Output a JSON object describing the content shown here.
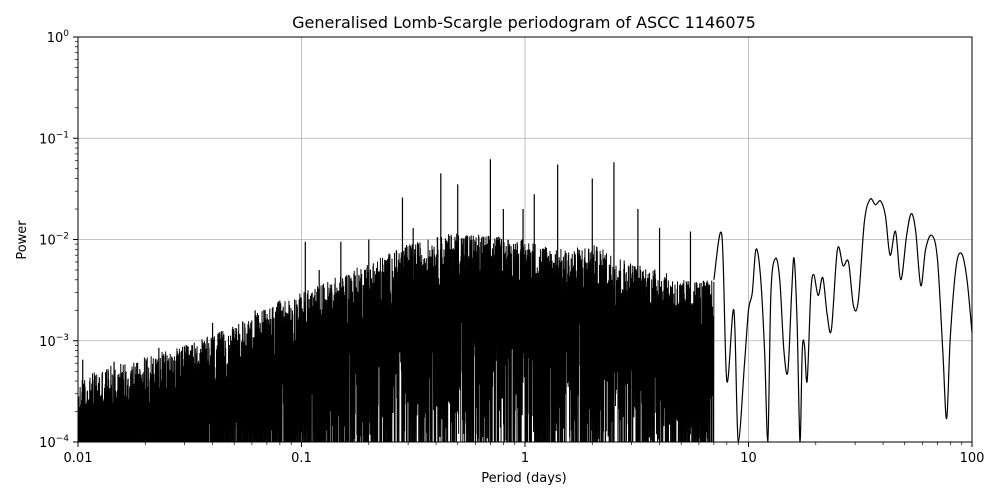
{
  "chart_data": {
    "type": "line",
    "title": "Generalised Lomb-Scargle periodogram of ASCC 1146075",
    "xlabel": "Period (days)",
    "ylabel": "Power",
    "xscale": "log",
    "yscale": "log",
    "xlim": [
      0.01,
      100
    ],
    "ylim": [
      0.0001,
      1
    ],
    "grid": "major",
    "x_ticks": [
      {
        "value": 0.01,
        "label": "0.01"
      },
      {
        "value": 0.1,
        "label": "0.1"
      },
      {
        "value": 1,
        "label": "1"
      },
      {
        "value": 10,
        "label": "10"
      },
      {
        "value": 100,
        "label": "100"
      }
    ],
    "y_ticks": [
      {
        "value": 0.0001,
        "base": "10",
        "exp": "−4"
      },
      {
        "value": 0.001,
        "base": "10",
        "exp": "−3"
      },
      {
        "value": 0.01,
        "base": "10",
        "exp": "−2"
      },
      {
        "value": 0.1,
        "base": "10",
        "exp": "−1"
      },
      {
        "value": 1,
        "base": "10",
        "exp": "0"
      }
    ],
    "line_color": "#000000",
    "grid_color": "#b0b0b0",
    "envelope": [
      [
        0.01,
        0.0004
      ],
      [
        0.012,
        0.0005
      ],
      [
        0.015,
        0.0006
      ],
      [
        0.02,
        0.0007
      ],
      [
        0.03,
        0.0009
      ],
      [
        0.05,
        0.0014
      ],
      [
        0.07,
        0.0022
      ],
      [
        0.1,
        0.003
      ],
      [
        0.15,
        0.0045
      ],
      [
        0.2,
        0.006
      ],
      [
        0.3,
        0.009
      ],
      [
        0.5,
        0.012
      ],
      [
        0.7,
        0.011
      ],
      [
        1,
        0.01
      ],
      [
        1.5,
        0.008
      ],
      [
        2,
        0.009
      ],
      [
        3,
        0.006
      ],
      [
        4,
        0.005
      ],
      [
        5,
        0.004
      ],
      [
        7,
        0.004
      ]
    ],
    "peaks": [
      {
        "period": 0.0105,
        "power": 0.00065
      },
      {
        "period": 0.0145,
        "power": 0.00062
      },
      {
        "period": 0.023,
        "power": 0.00085
      },
      {
        "period": 0.04,
        "power": 0.0015
      },
      {
        "period": 0.062,
        "power": 0.002
      },
      {
        "period": 0.08,
        "power": 0.0025
      },
      {
        "period": 0.104,
        "power": 0.0095
      },
      {
        "period": 0.12,
        "power": 0.005
      },
      {
        "period": 0.15,
        "power": 0.0095
      },
      {
        "period": 0.2,
        "power": 0.01
      },
      {
        "period": 0.283,
        "power": 0.026
      },
      {
        "period": 0.316,
        "power": 0.013
      },
      {
        "period": 0.42,
        "power": 0.045
      },
      {
        "period": 0.5,
        "power": 0.035
      },
      {
        "period": 0.7,
        "power": 0.062
      },
      {
        "period": 0.8,
        "power": 0.02
      },
      {
        "period": 0.98,
        "power": 0.02
      },
      {
        "period": 1.1,
        "power": 0.028
      },
      {
        "period": 1.4,
        "power": 0.055
      },
      {
        "period": 2.0,
        "power": 0.04
      },
      {
        "period": 2.5,
        "power": 0.058
      },
      {
        "period": 3.2,
        "power": 0.02
      },
      {
        "period": 4.0,
        "power": 0.013
      },
      {
        "period": 5.5,
        "power": 0.012
      }
    ],
    "smooth_curve": [
      [
        7.0,
        0.004
      ],
      [
        7.6,
        0.011
      ],
      [
        8.0,
        0.0004
      ],
      [
        8.6,
        0.002
      ],
      [
        9.0,
        0.0001
      ],
      [
        9.6,
        0.0006
      ],
      [
        10.0,
        0.002
      ],
      [
        10.4,
        0.003
      ],
      [
        10.8,
        0.008
      ],
      [
        11.3,
        0.0045
      ],
      [
        11.8,
        0.0008
      ],
      [
        12.2,
        0.0001
      ],
      [
        12.6,
        0.003
      ],
      [
        13.2,
        0.0065
      ],
      [
        13.8,
        0.004
      ],
      [
        14.4,
        0.0008
      ],
      [
        15.0,
        0.0005
      ],
      [
        15.6,
        0.003
      ],
      [
        16.0,
        0.0065
      ],
      [
        16.5,
        0.0015
      ],
      [
        17.0,
        0.0001
      ],
      [
        17.4,
        0.0008
      ],
      [
        17.8,
        0.0009
      ],
      [
        18.3,
        0.0004
      ],
      [
        19.0,
        0.003
      ],
      [
        19.6,
        0.0045
      ],
      [
        20.5,
        0.0028
      ],
      [
        21.5,
        0.0042
      ],
      [
        22.5,
        0.0018
      ],
      [
        23.5,
        0.0013
      ],
      [
        25.0,
        0.008
      ],
      [
        26.5,
        0.0055
      ],
      [
        28.0,
        0.006
      ],
      [
        29.5,
        0.0022
      ],
      [
        31.0,
        0.0025
      ],
      [
        33.0,
        0.015
      ],
      [
        35.0,
        0.025
      ],
      [
        37.0,
        0.022
      ],
      [
        39.0,
        0.024
      ],
      [
        41.0,
        0.017
      ],
      [
        43.0,
        0.007
      ],
      [
        45.5,
        0.012
      ],
      [
        48.0,
        0.004
      ],
      [
        51.0,
        0.011
      ],
      [
        53.5,
        0.018
      ],
      [
        56.0,
        0.012
      ],
      [
        59.0,
        0.0035
      ],
      [
        62.0,
        0.008
      ],
      [
        66.0,
        0.011
      ],
      [
        70.0,
        0.0065
      ],
      [
        74.0,
        0.0008
      ],
      [
        77.0,
        0.00017
      ],
      [
        80.0,
        0.0011
      ],
      [
        85.0,
        0.0055
      ],
      [
        90.0,
        0.0072
      ],
      [
        95.0,
        0.004
      ],
      [
        100.0,
        0.0012
      ]
    ]
  }
}
